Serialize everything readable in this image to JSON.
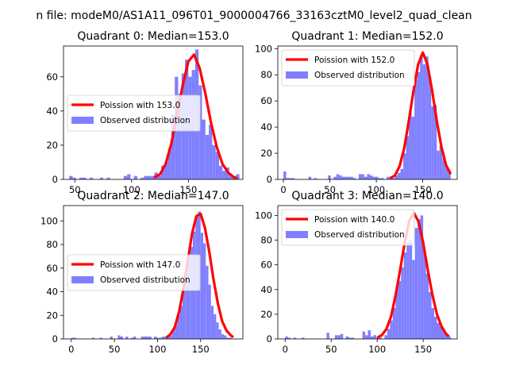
{
  "suptitle": "n file: modeM0/AS1A11_096T01_9000004766_33163cztM0_level2_quad_clean",
  "colors": {
    "curve": "#ff0000",
    "hist": "#8080ff"
  },
  "chart_data": [
    {
      "type": "bar",
      "title": "Quadrant 0: Median=153.0",
      "median": 153.0,
      "xlim": [
        40,
        198
      ],
      "ylim": [
        0,
        78
      ],
      "xticks": [
        50,
        100,
        150
      ],
      "yticks": [
        0,
        20,
        40,
        60
      ],
      "legend": {
        "position": "center-left",
        "curve_label": "Poission with 153.0",
        "hist_label": "Observed distribution"
      },
      "bin_width": 3,
      "hist": [
        [
          45,
          2
        ],
        [
          48,
          1
        ],
        [
          54,
          1
        ],
        [
          57,
          1
        ],
        [
          63,
          1
        ],
        [
          72,
          1
        ],
        [
          78,
          1
        ],
        [
          93,
          2
        ],
        [
          96,
          3
        ],
        [
          102,
          2
        ],
        [
          108,
          1
        ],
        [
          111,
          2
        ],
        [
          114,
          2
        ],
        [
          117,
          2
        ],
        [
          120,
          4
        ],
        [
          123,
          2
        ],
        [
          126,
          8
        ],
        [
          129,
          10
        ],
        [
          132,
          18
        ],
        [
          135,
          38
        ],
        [
          138,
          60
        ],
        [
          141,
          50
        ],
        [
          144,
          62
        ],
        [
          147,
          70
        ],
        [
          150,
          60
        ],
        [
          153,
          64
        ],
        [
          156,
          76
        ],
        [
          159,
          55
        ],
        [
          162,
          35
        ],
        [
          165,
          26
        ],
        [
          168,
          32
        ],
        [
          171,
          20
        ],
        [
          174,
          16
        ],
        [
          177,
          8
        ],
        [
          180,
          5
        ],
        [
          183,
          7
        ],
        [
          186,
          3
        ],
        [
          189,
          2
        ],
        [
          192,
          3
        ]
      ],
      "curve_x": [
        120,
        125,
        130,
        135,
        140,
        145,
        150,
        155,
        160,
        165,
        170,
        175,
        180,
        185,
        190,
        193
      ],
      "curve_y": [
        1,
        3,
        9,
        21,
        38,
        55,
        69,
        73,
        65,
        50,
        33,
        19,
        9,
        4,
        1.3,
        0.6
      ]
    },
    {
      "type": "bar",
      "title": "Quadrant 1: Median=152.0",
      "median": 152.0,
      "xlim": [
        -6,
        187
      ],
      "ylim": [
        0,
        102
      ],
      "xticks": [
        0,
        50,
        100,
        150
      ],
      "yticks": [
        0,
        20,
        40,
        60,
        80,
        100
      ],
      "legend": {
        "position": "top-left",
        "curve_label": "Poission with 152.0",
        "hist_label": "Observed distribution"
      },
      "bin_width": 3,
      "hist": [
        [
          0,
          6
        ],
        [
          3,
          1
        ],
        [
          6,
          1
        ],
        [
          9,
          1
        ],
        [
          27,
          2
        ],
        [
          33,
          1
        ],
        [
          48,
          3
        ],
        [
          54,
          2
        ],
        [
          57,
          4
        ],
        [
          60,
          3
        ],
        [
          63,
          2
        ],
        [
          66,
          2
        ],
        [
          69,
          2
        ],
        [
          72,
          2
        ],
        [
          75,
          1
        ],
        [
          81,
          4
        ],
        [
          84,
          4
        ],
        [
          87,
          2
        ],
        [
          90,
          4
        ],
        [
          93,
          3
        ],
        [
          96,
          2
        ],
        [
          99,
          2
        ],
        [
          102,
          1
        ],
        [
          105,
          1
        ],
        [
          111,
          2
        ],
        [
          114,
          2
        ],
        [
          117,
          1
        ],
        [
          120,
          3
        ],
        [
          123,
          5
        ],
        [
          126,
          8
        ],
        [
          129,
          20
        ],
        [
          132,
          33
        ],
        [
          135,
          52
        ],
        [
          138,
          48
        ],
        [
          141,
          76
        ],
        [
          144,
          82
        ],
        [
          147,
          95
        ],
        [
          150,
          88
        ],
        [
          153,
          94
        ],
        [
          156,
          78
        ],
        [
          159,
          56
        ],
        [
          162,
          57
        ],
        [
          165,
          22
        ],
        [
          168,
          26
        ],
        [
          171,
          16
        ],
        [
          174,
          10
        ],
        [
          177,
          7
        ]
      ],
      "curve_x": [
        115,
        120,
        125,
        130,
        135,
        140,
        145,
        150,
        155,
        160,
        165,
        170,
        175,
        180
      ],
      "curve_y": [
        1,
        3,
        10,
        24,
        45,
        68,
        88,
        97,
        88,
        68,
        45,
        25,
        11,
        4
      ]
    },
    {
      "type": "bar",
      "title": "Quadrant 2: Median=147.0",
      "median": 147.0,
      "xlim": [
        -9,
        199
      ],
      "ylim": [
        0,
        113
      ],
      "xticks": [
        0,
        50,
        100,
        150
      ],
      "yticks": [
        0,
        20,
        40,
        60,
        80,
        100
      ],
      "legend": {
        "position": "center-left",
        "curve_label": "Poission with 147.0",
        "hist_label": "Observed distribution"
      },
      "bin_width": 3,
      "hist": [
        [
          0,
          1
        ],
        [
          3,
          1
        ],
        [
          24,
          1
        ],
        [
          33,
          1
        ],
        [
          45,
          2
        ],
        [
          54,
          3
        ],
        [
          57,
          2
        ],
        [
          63,
          2
        ],
        [
          69,
          1
        ],
        [
          72,
          2
        ],
        [
          81,
          2
        ],
        [
          84,
          2
        ],
        [
          87,
          2
        ],
        [
          90,
          2
        ],
        [
          96,
          2
        ],
        [
          99,
          1
        ],
        [
          102,
          1
        ],
        [
          105,
          2
        ],
        [
          108,
          2
        ],
        [
          111,
          3
        ],
        [
          114,
          3
        ],
        [
          117,
          8
        ],
        [
          120,
          12
        ],
        [
          123,
          20
        ],
        [
          126,
          28
        ],
        [
          129,
          43
        ],
        [
          132,
          55
        ],
        [
          135,
          68
        ],
        [
          138,
          78
        ],
        [
          141,
          91
        ],
        [
          144,
          105
        ],
        [
          147,
          108
        ],
        [
          150,
          90
        ],
        [
          153,
          81
        ],
        [
          156,
          62
        ],
        [
          159,
          46
        ],
        [
          162,
          28
        ],
        [
          165,
          21
        ],
        [
          168,
          14
        ],
        [
          171,
          8
        ],
        [
          174,
          4
        ],
        [
          177,
          3
        ],
        [
          180,
          1
        ],
        [
          183,
          1
        ]
      ],
      "curve_x": [
        110,
        115,
        120,
        125,
        130,
        135,
        140,
        145,
        150,
        155,
        160,
        165,
        170,
        175,
        180,
        185,
        188
      ],
      "curve_y": [
        1,
        4,
        10,
        23,
        42,
        66,
        89,
        104,
        106,
        94,
        74,
        50,
        30,
        15,
        7,
        3,
        1.5
      ]
    },
    {
      "type": "bar",
      "title": "Quadrant 3: Median=140.0",
      "median": 140.0,
      "xlim": [
        -8,
        187
      ],
      "ylim": [
        0,
        108
      ],
      "xticks": [
        0,
        50,
        100,
        150
      ],
      "yticks": [
        0,
        20,
        40,
        60,
        80,
        100
      ],
      "legend": {
        "position": "top-left",
        "curve_label": "Poission with 140.0",
        "hist_label": "Observed distribution"
      },
      "bin_width": 3,
      "hist": [
        [
          0,
          2
        ],
        [
          3,
          1
        ],
        [
          9,
          1
        ],
        [
          18,
          1
        ],
        [
          45,
          5
        ],
        [
          54,
          3
        ],
        [
          57,
          3
        ],
        [
          60,
          4
        ],
        [
          66,
          2
        ],
        [
          69,
          1
        ],
        [
          72,
          1
        ],
        [
          84,
          6
        ],
        [
          87,
          3
        ],
        [
          90,
          7
        ],
        [
          93,
          2
        ],
        [
          96,
          3
        ],
        [
          99,
          1
        ],
        [
          102,
          1
        ],
        [
          108,
          3
        ],
        [
          111,
          8
        ],
        [
          114,
          15
        ],
        [
          117,
          25
        ],
        [
          120,
          42
        ],
        [
          123,
          47
        ],
        [
          126,
          58
        ],
        [
          129,
          70
        ],
        [
          132,
          78
        ],
        [
          135,
          80
        ],
        [
          138,
          64
        ],
        [
          141,
          90
        ],
        [
          144,
          97
        ],
        [
          147,
          100
        ],
        [
          150,
          72
        ],
        [
          153,
          53
        ],
        [
          156,
          38
        ],
        [
          159,
          25
        ],
        [
          162,
          18
        ],
        [
          165,
          13
        ],
        [
          168,
          10
        ],
        [
          171,
          7
        ],
        [
          174,
          4
        ],
        [
          177,
          2
        ]
      ],
      "curve_x": [
        100,
        105,
        110,
        115,
        120,
        125,
        130,
        135,
        140,
        145,
        150,
        155,
        160,
        165,
        170,
        175,
        178
      ],
      "curve_y": [
        1,
        3,
        8,
        18,
        35,
        56,
        78,
        96,
        102,
        95,
        78,
        56,
        36,
        20,
        10,
        4,
        2
      ]
    }
  ]
}
